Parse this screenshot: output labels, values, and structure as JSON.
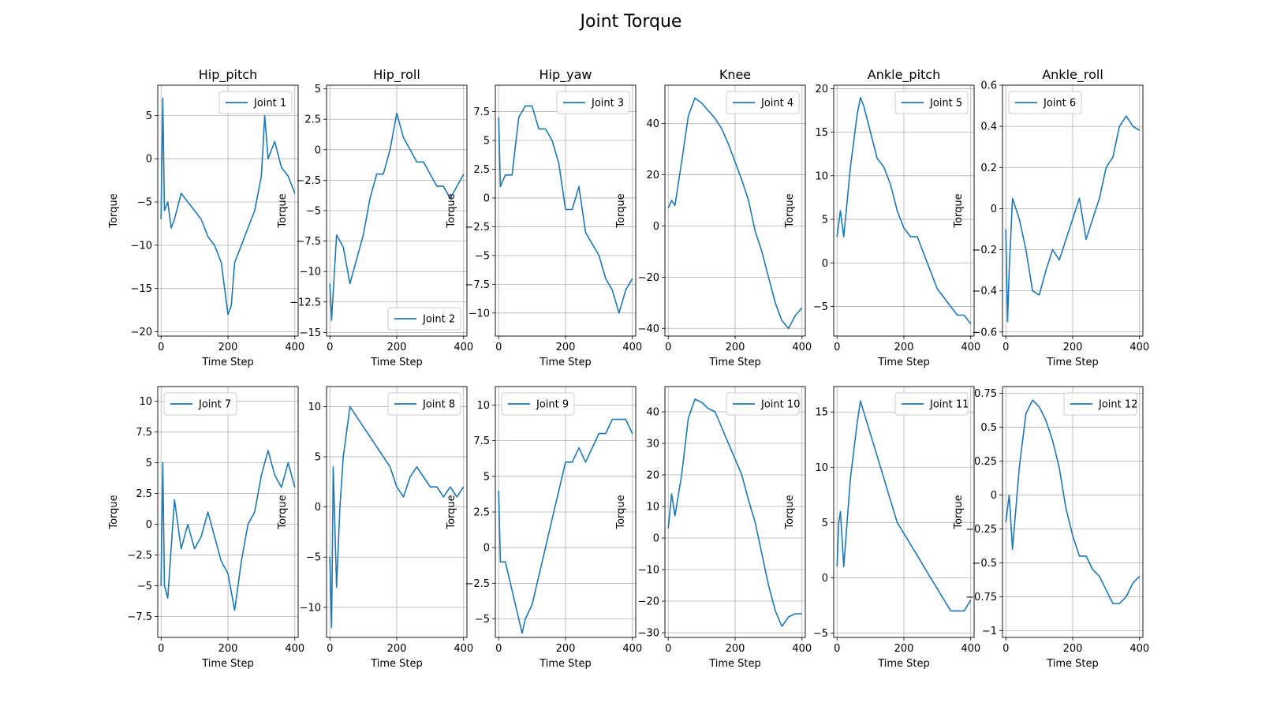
{
  "figure": {
    "title": "Joint Torque"
  },
  "colors": {
    "line": "#1f77b4",
    "grid": "#b0b0b0",
    "axes": "#000000"
  },
  "chart_data": [
    {
      "type": "line",
      "title": "Hip_pitch",
      "xlabel": "Time Step",
      "ylabel": "Torque",
      "xlim": [
        -10,
        410
      ],
      "ylim": [
        -20.5,
        8.5
      ],
      "xticks": [
        0,
        200,
        400
      ],
      "yticks": [
        -20,
        -15,
        -10,
        -5,
        0,
        5
      ],
      "grid": true,
      "legend": "upper right",
      "series": [
        {
          "name": "Joint 1",
          "x": [
            0,
            5,
            10,
            20,
            30,
            40,
            60,
            80,
            100,
            120,
            140,
            160,
            180,
            200,
            210,
            220,
            240,
            260,
            280,
            300,
            310,
            320,
            340,
            360,
            380,
            400
          ],
          "y": [
            -7,
            7,
            -6,
            -5,
            -8,
            -7,
            -4,
            -5,
            -6,
            -7,
            -9,
            -10,
            -12,
            -18,
            -17,
            -12,
            -10,
            -8,
            -6,
            -2,
            5,
            0,
            2,
            -1,
            -2,
            -4
          ]
        }
      ]
    },
    {
      "type": "line",
      "title": "Hip_roll",
      "xlabel": "Time Step",
      "ylabel": "Torque",
      "xlim": [
        -10,
        410
      ],
      "ylim": [
        -15.3,
        5.3
      ],
      "xticks": [
        0,
        200,
        400
      ],
      "yticks": [
        -15.0,
        -12.5,
        -10.0,
        -7.5,
        -5.0,
        -2.5,
        0.0,
        2.5,
        5.0
      ],
      "grid": true,
      "legend": "lower right",
      "series": [
        {
          "name": "Joint 2",
          "x": [
            0,
            5,
            20,
            40,
            60,
            80,
            100,
            120,
            140,
            160,
            180,
            200,
            220,
            240,
            260,
            280,
            300,
            320,
            340,
            360,
            380,
            400
          ],
          "y": [
            -11,
            -14,
            -7,
            -8,
            -11,
            -9,
            -7,
            -4,
            -2,
            -2,
            0,
            3,
            1,
            0,
            -1,
            -1,
            -2,
            -3,
            -3,
            -4,
            -3,
            -2
          ]
        }
      ]
    },
    {
      "type": "line",
      "title": "Hip_yaw",
      "xlabel": "Time Step",
      "ylabel": "Torque",
      "xlim": [
        -10,
        410
      ],
      "ylim": [
        -12,
        9.8
      ],
      "xticks": [
        0,
        200,
        400
      ],
      "yticks": [
        -10.0,
        -7.5,
        -5.0,
        -2.5,
        0.0,
        2.5,
        5.0,
        7.5
      ],
      "grid": true,
      "legend": "upper right",
      "series": [
        {
          "name": "Joint 3",
          "x": [
            0,
            5,
            20,
            40,
            60,
            80,
            100,
            120,
            140,
            160,
            180,
            200,
            220,
            240,
            260,
            280,
            300,
            320,
            340,
            360,
            380,
            400
          ],
          "y": [
            7,
            1,
            2,
            2,
            7,
            8,
            8,
            6,
            6,
            5,
            3,
            -1,
            -1,
            1,
            -3,
            -4,
            -5,
            -7,
            -8,
            -10,
            -8,
            -7
          ]
        }
      ]
    },
    {
      "type": "line",
      "title": "Knee",
      "xlabel": "Time Step",
      "ylabel": "Torque",
      "xlim": [
        -10,
        410
      ],
      "ylim": [
        -43,
        55
      ],
      "xticks": [
        0,
        200,
        400
      ],
      "yticks": [
        -40,
        -20,
        0,
        20,
        40
      ],
      "grid": true,
      "legend": "upper right",
      "series": [
        {
          "name": "Joint 4",
          "x": [
            0,
            10,
            20,
            40,
            60,
            80,
            100,
            120,
            140,
            160,
            180,
            200,
            220,
            240,
            260,
            280,
            300,
            320,
            340,
            360,
            380,
            400
          ],
          "y": [
            7,
            10,
            8,
            25,
            43,
            50,
            48,
            45,
            42,
            38,
            32,
            25,
            18,
            10,
            -2,
            -10,
            -20,
            -30,
            -37,
            -40,
            -35,
            -32
          ]
        }
      ]
    },
    {
      "type": "line",
      "title": "Ankle_pitch",
      "xlabel": "Time Step",
      "ylabel": "Torque",
      "xlim": [
        -10,
        410
      ],
      "ylim": [
        -8.4,
        20.4
      ],
      "xticks": [
        0,
        200,
        400
      ],
      "yticks": [
        -5,
        0,
        5,
        10,
        15,
        20
      ],
      "grid": true,
      "legend": "upper right",
      "series": [
        {
          "name": "Joint 5",
          "x": [
            0,
            10,
            20,
            40,
            60,
            70,
            80,
            100,
            120,
            140,
            160,
            180,
            200,
            220,
            240,
            260,
            280,
            300,
            320,
            340,
            360,
            380,
            400
          ],
          "y": [
            3,
            6,
            3,
            11,
            17,
            19,
            18,
            15,
            12,
            11,
            9,
            6,
            4,
            3,
            3,
            1,
            -1,
            -3,
            -4,
            -5,
            -6,
            -6,
            -7
          ]
        }
      ]
    },
    {
      "type": "line",
      "title": "Ankle_roll",
      "xlabel": "Time Step",
      "ylabel": "Torque",
      "xlim": [
        -10,
        410
      ],
      "ylim": [
        -0.62,
        0.6
      ],
      "xticks": [
        0,
        200,
        400
      ],
      "yticks": [
        -0.6,
        -0.4,
        -0.2,
        0.0,
        0.2,
        0.4,
        0.6
      ],
      "grid": true,
      "legend": "upper left",
      "series": [
        {
          "name": "Joint 6",
          "x": [
            0,
            5,
            10,
            20,
            40,
            60,
            80,
            100,
            120,
            140,
            160,
            180,
            200,
            220,
            240,
            260,
            280,
            300,
            320,
            340,
            360,
            380,
            400
          ],
          "y": [
            -0.1,
            -0.55,
            -0.3,
            0.05,
            -0.05,
            -0.2,
            -0.4,
            -0.42,
            -0.3,
            -0.2,
            -0.25,
            -0.15,
            -0.05,
            0.05,
            -0.15,
            -0.05,
            0.05,
            0.2,
            0.25,
            0.4,
            0.45,
            0.4,
            0.38
          ]
        }
      ]
    },
    {
      "type": "line",
      "title": "",
      "xlabel": "Time Step",
      "ylabel": "Torque",
      "xlim": [
        -10,
        410
      ],
      "ylim": [
        -9.2,
        11.2
      ],
      "xticks": [
        0,
        200,
        400
      ],
      "yticks": [
        -7.5,
        -5.0,
        -2.5,
        0.0,
        2.5,
        5.0,
        7.5,
        10.0
      ],
      "grid": true,
      "legend": "upper left",
      "series": [
        {
          "name": "Joint 7",
          "x": [
            0,
            5,
            10,
            20,
            40,
            60,
            80,
            100,
            120,
            140,
            160,
            180,
            200,
            220,
            240,
            260,
            280,
            300,
            320,
            340,
            360,
            380,
            400
          ],
          "y": [
            -5,
            5,
            -5,
            -6,
            2,
            -2,
            0,
            -2,
            -1,
            1,
            -1,
            -3,
            -4,
            -7,
            -3,
            0,
            1,
            4,
            6,
            4,
            3,
            5,
            3
          ]
        }
      ]
    },
    {
      "type": "line",
      "title": "",
      "xlabel": "Time Step",
      "ylabel": "Torque",
      "xlim": [
        -10,
        410
      ],
      "ylim": [
        -13,
        12
      ],
      "xticks": [
        0,
        200,
        400
      ],
      "yticks": [
        -10,
        -5,
        0,
        5,
        10
      ],
      "grid": true,
      "legend": "upper right",
      "series": [
        {
          "name": "Joint 8",
          "x": [
            0,
            5,
            10,
            20,
            30,
            40,
            60,
            80,
            100,
            120,
            140,
            160,
            180,
            200,
            220,
            240,
            260,
            280,
            300,
            320,
            340,
            360,
            380,
            400
          ],
          "y": [
            -5,
            -12,
            4,
            -8,
            0,
            5,
            10,
            9,
            8,
            7,
            6,
            5,
            4,
            2,
            1,
            3,
            4,
            3,
            2,
            2,
            1,
            2,
            1,
            2
          ]
        }
      ]
    },
    {
      "type": "line",
      "title": "",
      "xlabel": "Time Step",
      "ylabel": "Torque",
      "xlim": [
        -10,
        410
      ],
      "ylim": [
        -6.3,
        11.3
      ],
      "xticks": [
        0,
        200,
        400
      ],
      "yticks": [
        -5.0,
        -2.5,
        0.0,
        2.5,
        5.0,
        7.5,
        10.0
      ],
      "grid": true,
      "legend": "upper left",
      "series": [
        {
          "name": "Joint 9",
          "x": [
            0,
            5,
            20,
            40,
            60,
            70,
            80,
            100,
            120,
            140,
            160,
            180,
            200,
            220,
            240,
            260,
            280,
            300,
            320,
            340,
            360,
            380,
            400
          ],
          "y": [
            4,
            -1,
            -1,
            -3,
            -5,
            -6,
            -5,
            -4,
            -2,
            0,
            2,
            4,
            6,
            6,
            7,
            6,
            7,
            8,
            8,
            9,
            9,
            9,
            8
          ]
        }
      ]
    },
    {
      "type": "line",
      "title": "",
      "xlabel": "Time Step",
      "ylabel": "Torque",
      "xlim": [
        -10,
        410
      ],
      "ylim": [
        -31.5,
        48
      ],
      "xticks": [
        0,
        200,
        400
      ],
      "yticks": [
        -30,
        -20,
        -10,
        0,
        10,
        20,
        30,
        40
      ],
      "grid": true,
      "legend": "upper right",
      "series": [
        {
          "name": "Joint 10",
          "x": [
            0,
            10,
            20,
            40,
            60,
            80,
            100,
            120,
            140,
            160,
            180,
            200,
            220,
            240,
            260,
            280,
            300,
            320,
            340,
            360,
            380,
            400
          ],
          "y": [
            3,
            14,
            7,
            20,
            38,
            44,
            43,
            41,
            40,
            35,
            30,
            25,
            20,
            12,
            5,
            -5,
            -15,
            -23,
            -28,
            -25,
            -24,
            -24
          ]
        }
      ]
    },
    {
      "type": "line",
      "title": "",
      "xlabel": "Time Step",
      "ylabel": "Torque",
      "xlim": [
        -10,
        410
      ],
      "ylim": [
        -5.4,
        17.3
      ],
      "xticks": [
        0,
        200,
        400
      ],
      "yticks": [
        -5,
        0,
        5,
        10,
        15
      ],
      "grid": true,
      "legend": "upper right",
      "series": [
        {
          "name": "Joint 11",
          "x": [
            0,
            5,
            10,
            20,
            40,
            60,
            70,
            80,
            100,
            120,
            140,
            160,
            180,
            200,
            220,
            240,
            260,
            280,
            300,
            320,
            340,
            360,
            380,
            400
          ],
          "y": [
            1,
            5,
            6,
            1,
            9,
            14,
            16,
            15,
            13,
            11,
            9,
            7,
            5,
            4,
            3,
            2,
            1,
            0,
            -1,
            -2,
            -3,
            -3,
            -3,
            -2
          ]
        }
      ]
    },
    {
      "type": "line",
      "title": "",
      "xlabel": "Time Step",
      "ylabel": "Torque",
      "xlim": [
        -10,
        410
      ],
      "ylim": [
        -1.05,
        0.8
      ],
      "xticks": [
        0,
        200,
        400
      ],
      "yticks": [
        -1.0,
        -0.75,
        -0.5,
        -0.25,
        0.0,
        0.25,
        0.5,
        0.75
      ],
      "grid": true,
      "legend": "upper right",
      "series": [
        {
          "name": "Joint 12",
          "x": [
            0,
            10,
            20,
            40,
            60,
            80,
            100,
            120,
            140,
            160,
            180,
            200,
            220,
            240,
            260,
            280,
            300,
            320,
            340,
            360,
            380,
            400
          ],
          "y": [
            -0.2,
            0.0,
            -0.4,
            0.2,
            0.6,
            0.7,
            0.65,
            0.55,
            0.4,
            0.2,
            -0.1,
            -0.3,
            -0.45,
            -0.45,
            -0.55,
            -0.6,
            -0.7,
            -0.8,
            -0.8,
            -0.75,
            -0.65,
            -0.6
          ]
        }
      ]
    }
  ]
}
